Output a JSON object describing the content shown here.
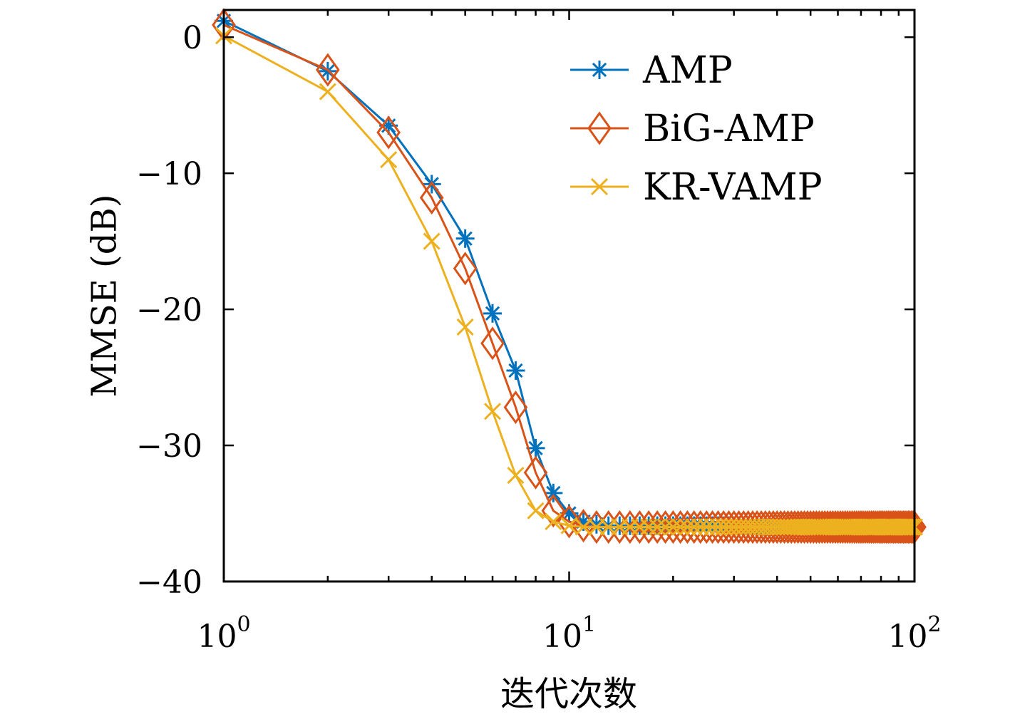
{
  "chart_data": {
    "type": "line",
    "title": "",
    "xlabel": "迭代次数",
    "ylabel": "MMSE (dB)",
    "xscale": "log",
    "xlim": [
      1,
      100
    ],
    "ylim": [
      -40,
      2
    ],
    "grid": false,
    "legend_position": "top-right",
    "x_ticks": [
      {
        "value": 1,
        "base": "10",
        "exp": "0"
      },
      {
        "value": 10,
        "base": "10",
        "exp": "1"
      },
      {
        "value": 100,
        "base": "10",
        "exp": "2"
      }
    ],
    "y_ticks": [
      {
        "value": 0,
        "label": "0"
      },
      {
        "value": -10,
        "label": "−10"
      },
      {
        "value": -20,
        "label": "−20"
      },
      {
        "value": -30,
        "label": "−30"
      },
      {
        "value": -40,
        "label": "−40"
      }
    ],
    "x": [
      1,
      2,
      3,
      4,
      5,
      6,
      7,
      8,
      9,
      10,
      11,
      12,
      13,
      14,
      15,
      16,
      17,
      18,
      19,
      20,
      21,
      22,
      23,
      24,
      25,
      26,
      27,
      28,
      29,
      30,
      31,
      32,
      33,
      34,
      35,
      36,
      37,
      38,
      39,
      40,
      41,
      42,
      43,
      44,
      45,
      46,
      47,
      48,
      49,
      50,
      51,
      52,
      53,
      54,
      55,
      56,
      57,
      58,
      59,
      60,
      61,
      62,
      63,
      64,
      65,
      66,
      67,
      68,
      69,
      70,
      71,
      72,
      73,
      74,
      75,
      76,
      77,
      78,
      79,
      80,
      81,
      82,
      83,
      84,
      85,
      86,
      87,
      88,
      89,
      90,
      91,
      92,
      93,
      94,
      95,
      96,
      97,
      98,
      99,
      100
    ],
    "series": [
      {
        "name": "AMP",
        "color": "#0072BD",
        "marker": "asterisk",
        "head": [
          1.2,
          -2.5,
          -6.5,
          -10.8,
          -14.8,
          -20.3,
          -24.5,
          -30.2,
          -33.5,
          -35.0,
          -35.6,
          -35.8
        ],
        "steady_value": -35.9
      },
      {
        "name": "BiG-AMP",
        "color": "#D95319",
        "marker": "diamond",
        "head": [
          0.9,
          -2.4,
          -7.0,
          -11.8,
          -17.0,
          -22.5,
          -27.2,
          -32.0,
          -34.8,
          -35.6,
          -35.9,
          -36.0
        ],
        "steady_value": -36.0
      },
      {
        "name": "KR-VAMP",
        "color": "#EDB120",
        "marker": "cross",
        "head": [
          0.1,
          -4.0,
          -9.0,
          -15.0,
          -21.3,
          -27.5,
          -32.2,
          -34.8,
          -35.6,
          -35.9,
          -36.0,
          -36.0
        ],
        "steady_value": -36.0
      }
    ]
  }
}
